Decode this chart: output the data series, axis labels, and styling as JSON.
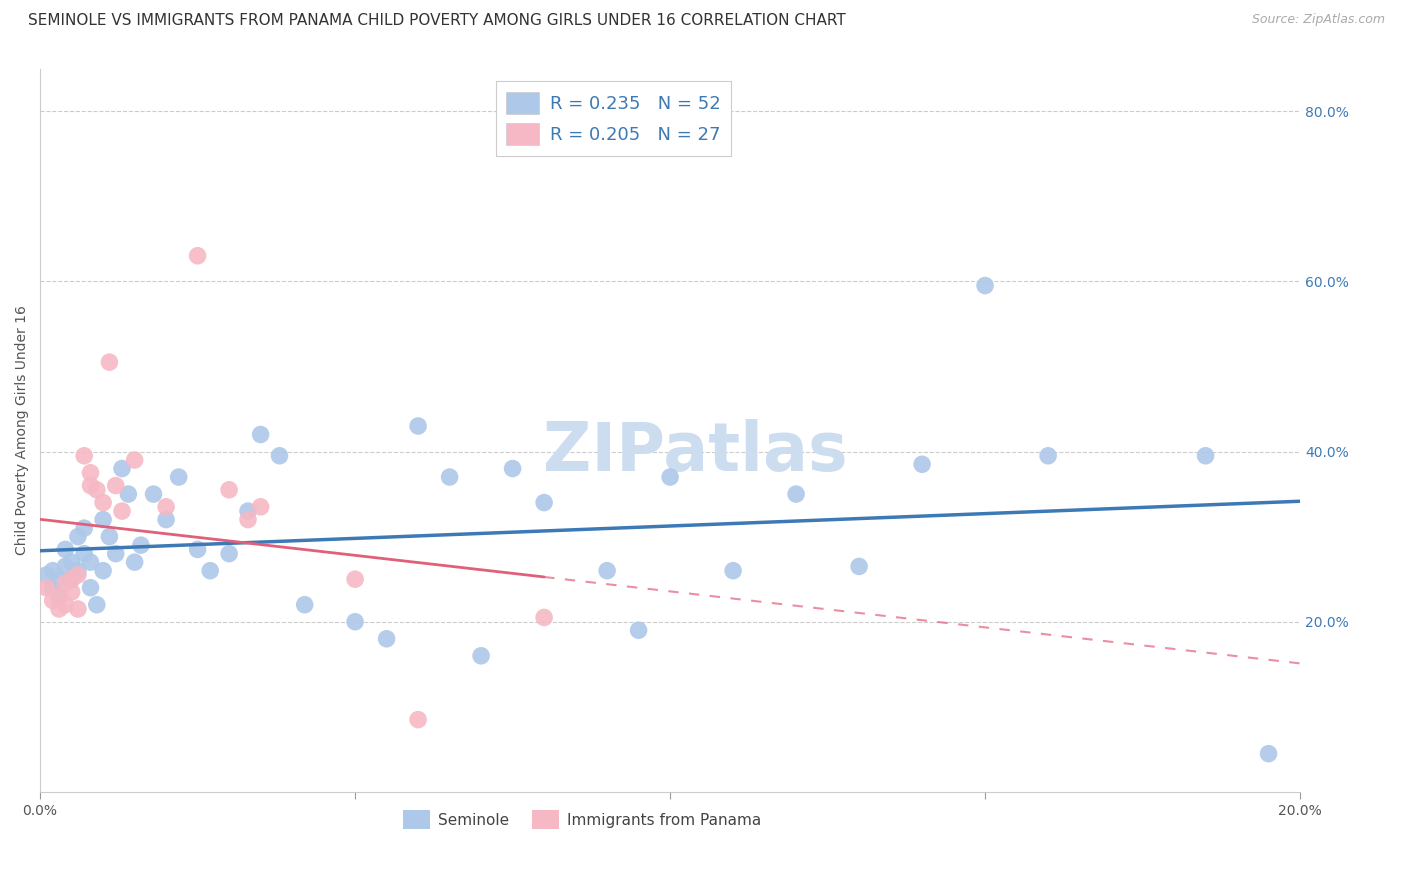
{
  "title": "SEMINOLE VS IMMIGRANTS FROM PANAMA CHILD POVERTY AMONG GIRLS UNDER 16 CORRELATION CHART",
  "source": "Source: ZipAtlas.com",
  "ylabel": "Child Poverty Among Girls Under 16",
  "legend_series": [
    {
      "label": "Seminole",
      "color": "#adc8e8",
      "R": 0.235,
      "N": 52
    },
    {
      "label": "Immigrants from Panama",
      "color": "#f5b8c4",
      "R": 0.205,
      "N": 27
    }
  ],
  "seminole_x": [
    0.001,
    0.002,
    0.002,
    0.003,
    0.003,
    0.004,
    0.004,
    0.005,
    0.005,
    0.006,
    0.006,
    0.007,
    0.007,
    0.008,
    0.008,
    0.009,
    0.01,
    0.01,
    0.011,
    0.012,
    0.013,
    0.014,
    0.015,
    0.016,
    0.018,
    0.02,
    0.022,
    0.025,
    0.027,
    0.03,
    0.033,
    0.035,
    0.038,
    0.042,
    0.05,
    0.055,
    0.06,
    0.065,
    0.07,
    0.075,
    0.08,
    0.09,
    0.095,
    0.1,
    0.11,
    0.12,
    0.13,
    0.14,
    0.15,
    0.16,
    0.185,
    0.195
  ],
  "seminole_y": [
    0.255,
    0.24,
    0.26,
    0.25,
    0.23,
    0.265,
    0.285,
    0.27,
    0.25,
    0.3,
    0.26,
    0.28,
    0.31,
    0.24,
    0.27,
    0.22,
    0.26,
    0.32,
    0.3,
    0.28,
    0.38,
    0.35,
    0.27,
    0.29,
    0.35,
    0.32,
    0.37,
    0.285,
    0.26,
    0.28,
    0.33,
    0.42,
    0.395,
    0.22,
    0.2,
    0.18,
    0.43,
    0.37,
    0.16,
    0.38,
    0.34,
    0.26,
    0.19,
    0.37,
    0.26,
    0.35,
    0.265,
    0.385,
    0.595,
    0.395,
    0.395,
    0.045
  ],
  "panama_x": [
    0.001,
    0.002,
    0.003,
    0.003,
    0.004,
    0.004,
    0.005,
    0.005,
    0.006,
    0.006,
    0.007,
    0.008,
    0.008,
    0.009,
    0.01,
    0.011,
    0.012,
    0.013,
    0.015,
    0.02,
    0.025,
    0.03,
    0.033,
    0.035,
    0.05,
    0.06,
    0.08
  ],
  "panama_y": [
    0.24,
    0.225,
    0.215,
    0.23,
    0.22,
    0.245,
    0.235,
    0.25,
    0.215,
    0.255,
    0.395,
    0.375,
    0.36,
    0.355,
    0.34,
    0.505,
    0.36,
    0.33,
    0.39,
    0.335,
    0.63,
    0.355,
    0.32,
    0.335,
    0.25,
    0.085,
    0.205
  ],
  "xlim": [
    0.0,
    0.2
  ],
  "ylim": [
    0.0,
    0.85
  ],
  "yticks": [
    0.2,
    0.4,
    0.6,
    0.8
  ],
  "ytick_labels": [
    "20.0%",
    "40.0%",
    "60.0%",
    "80.0%"
  ],
  "xticks": [
    0.0,
    0.05,
    0.1,
    0.15,
    0.2
  ],
  "xtick_labels": [
    "0.0%",
    "",
    "",
    "",
    "20.0%"
  ],
  "grid_color": "#cccccc",
  "background_color": "#ffffff",
  "seminole_color": "#adc8e8",
  "panama_color": "#f5b8c4",
  "seminole_line_color": "#3d7ab5",
  "panama_line_color": "#e0607a",
  "watermark_color": "#ccddf0",
  "watermark": "ZIPatlas",
  "title_fontsize": 11,
  "axis_label_fontsize": 10,
  "tick_fontsize": 10
}
